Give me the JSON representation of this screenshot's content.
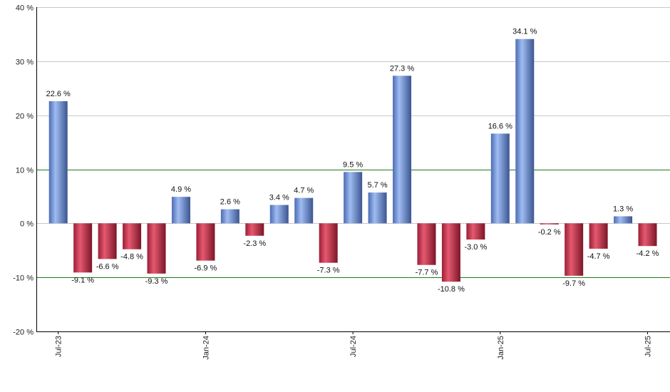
{
  "chart_data": {
    "type": "bar",
    "title": "",
    "xlabel": "",
    "ylabel": "",
    "ylim": [
      -20,
      40
    ],
    "yticks": [
      -20,
      -10,
      0,
      10,
      20,
      30,
      40
    ],
    "ytick_suffix": " %",
    "grid": true,
    "reference_lines": [
      10,
      -10
    ],
    "value_suffix": " %",
    "colors": {
      "positive": "#7f9fe0",
      "negative": "#c43a52",
      "grid": "#c8c8c8",
      "reference_line": "#1e7a1e",
      "axis": "#000000"
    },
    "x_tick_labels": [
      {
        "index": 0,
        "label": "Jul-23"
      },
      {
        "index": 6,
        "label": "Jan-24"
      },
      {
        "index": 12,
        "label": "Jul-24"
      },
      {
        "index": 18,
        "label": "Jan-25"
      },
      {
        "index": 24,
        "label": "Jul-25"
      }
    ],
    "values": [
      22.6,
      -9.1,
      -6.6,
      -4.8,
      -9.3,
      4.9,
      -6.9,
      2.6,
      -2.3,
      3.4,
      4.7,
      -7.3,
      9.5,
      5.7,
      27.3,
      -7.7,
      -10.8,
      -3.0,
      16.6,
      34.1,
      -0.2,
      -9.7,
      -4.7,
      1.3,
      -4.2
    ]
  }
}
